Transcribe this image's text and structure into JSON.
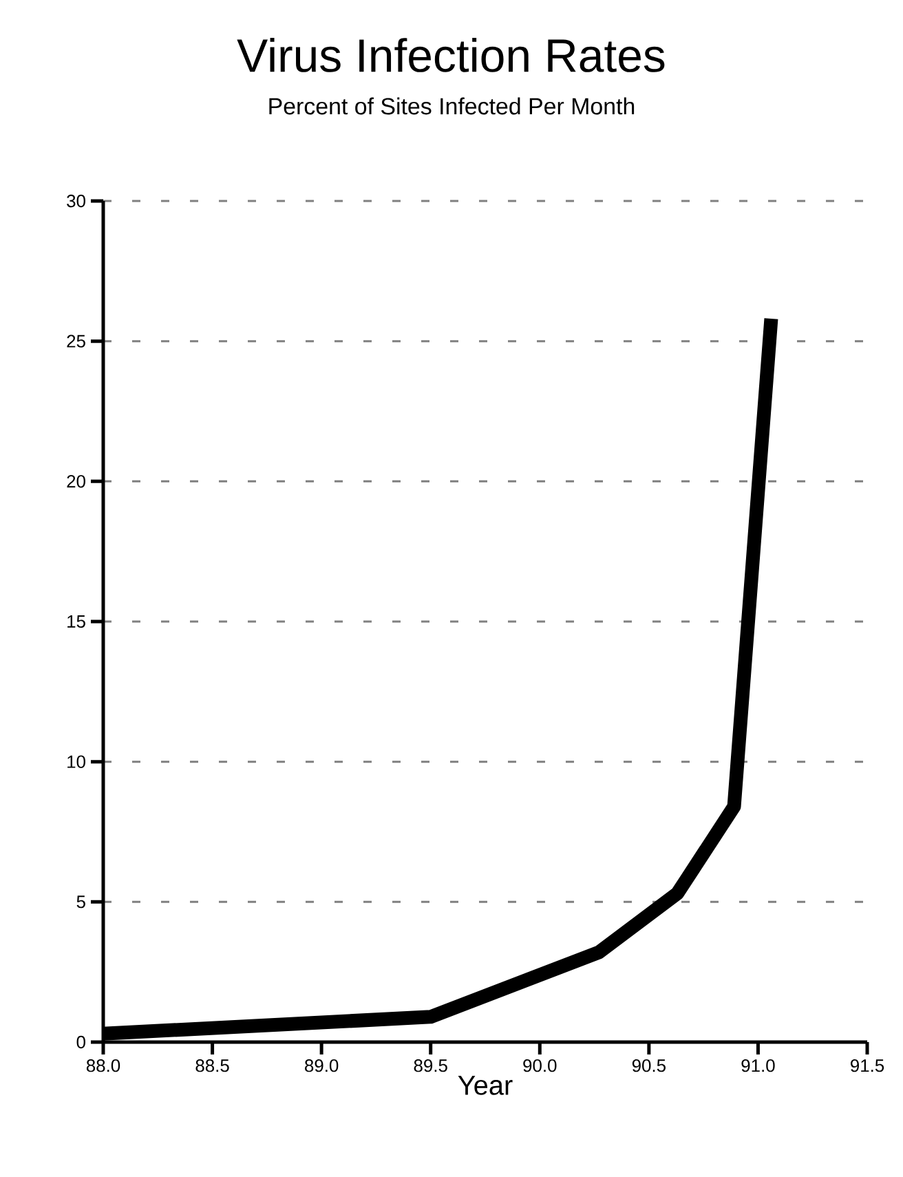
{
  "chart_data": {
    "type": "line",
    "title": "Virus Infection Rates",
    "subtitle": "Percent of Sites Infected Per Month",
    "xlabel": "Year",
    "x": [
      88.0,
      89.5,
      90.27,
      90.63,
      90.89,
      91.06
    ],
    "values": [
      0.3,
      0.9,
      3.2,
      5.3,
      8.4,
      25.8
    ],
    "color": "#000000",
    "line_style": "solid",
    "xlim": [
      88.0,
      91.5
    ],
    "xticks": [
      {
        "value": 88.0,
        "label": "88.0"
      },
      {
        "value": 88.5,
        "label": "88.5"
      },
      {
        "value": 89.0,
        "label": "89.0"
      },
      {
        "value": 89.5,
        "label": "89.5"
      },
      {
        "value": 90.0,
        "label": "90.0"
      },
      {
        "value": 90.5,
        "label": "90.5"
      },
      {
        "value": 91.0,
        "label": "91.0"
      },
      {
        "value": 91.5,
        "label": "91.5"
      }
    ],
    "ylim": [
      0,
      30
    ],
    "yticks": [
      0,
      5,
      10,
      15,
      20,
      25,
      30
    ],
    "grid": "y"
  }
}
